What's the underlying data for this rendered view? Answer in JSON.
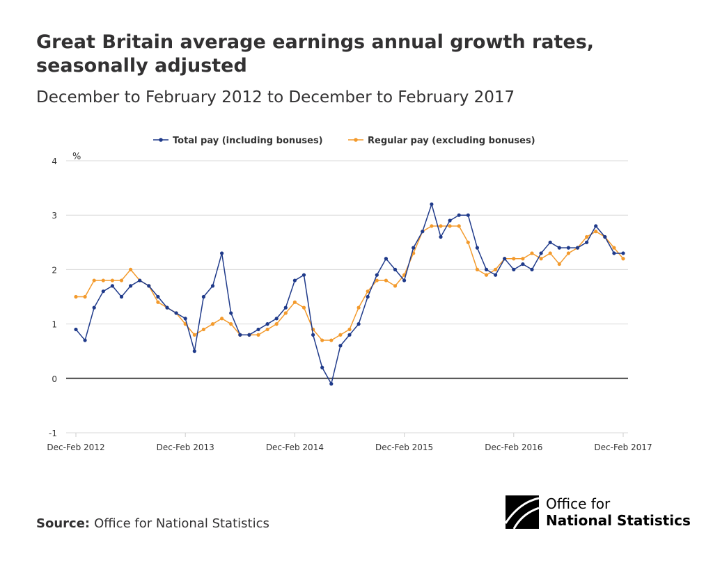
{
  "title": "Great Britain average earnings annual growth rates, seasonally adjusted",
  "subtitle": "December to February 2012 to December to February 2017",
  "source_label": "Source:",
  "source_text": "Office for National Statistics",
  "logo": {
    "line1": "Office for",
    "line2": "National Statistics"
  },
  "chart_data": {
    "type": "line",
    "ylabel": "%",
    "ylim": [
      -1,
      4
    ],
    "yticks": [
      -1,
      0,
      1,
      2,
      3,
      4
    ],
    "grid": true,
    "legend_position": "top",
    "xtick_labels": [
      "Dec-Feb 2012",
      "Dec-Feb 2013",
      "Dec-Feb 2014",
      "Dec-Feb 2015",
      "Dec-Feb 2016",
      "Dec-Feb 2017"
    ],
    "xtick_every": 12,
    "series": [
      {
        "name": "Total pay (including bonuses)",
        "color": "#1f3a8a",
        "values": [
          0.9,
          0.7,
          1.3,
          1.6,
          1.7,
          1.5,
          1.7,
          1.8,
          1.7,
          1.5,
          1.3,
          1.2,
          1.1,
          0.5,
          1.5,
          1.7,
          2.3,
          1.2,
          0.8,
          0.8,
          0.9,
          1.0,
          1.1,
          1.3,
          1.8,
          1.9,
          0.8,
          0.2,
          -0.1,
          0.6,
          0.8,
          1.0,
          1.5,
          1.9,
          2.2,
          2.0,
          1.8,
          2.4,
          2.7,
          3.2,
          2.6,
          2.9,
          3.0,
          3.0,
          2.4,
          2.0,
          1.9,
          2.2,
          2.0,
          2.1,
          2.0,
          2.3,
          2.5,
          2.4,
          2.4,
          2.4,
          2.5,
          2.8,
          2.6,
          2.3,
          2.3
        ]
      },
      {
        "name": "Regular pay (excluding bonuses)",
        "color": "#f39a2c",
        "values": [
          1.5,
          1.5,
          1.8,
          1.8,
          1.8,
          1.8,
          2.0,
          1.8,
          1.7,
          1.4,
          1.3,
          1.2,
          1.0,
          0.8,
          0.9,
          1.0,
          1.1,
          1.0,
          0.8,
          0.8,
          0.8,
          0.9,
          1.0,
          1.2,
          1.4,
          1.3,
          0.9,
          0.7,
          0.7,
          0.8,
          0.9,
          1.3,
          1.6,
          1.8,
          1.8,
          1.7,
          1.9,
          2.3,
          2.7,
          2.8,
          2.8,
          2.8,
          2.8,
          2.5,
          2.0,
          1.9,
          2.0,
          2.2,
          2.2,
          2.2,
          2.3,
          2.2,
          2.3,
          2.1,
          2.3,
          2.4,
          2.6,
          2.7,
          2.6,
          2.4,
          2.2
        ]
      }
    ]
  }
}
